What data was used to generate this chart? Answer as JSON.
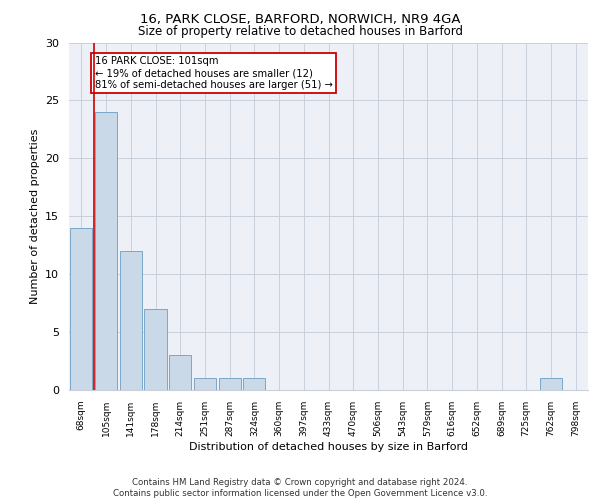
{
  "title1": "16, PARK CLOSE, BARFORD, NORWICH, NR9 4GA",
  "title2": "Size of property relative to detached houses in Barford",
  "xlabel": "Distribution of detached houses by size in Barford",
  "ylabel": "Number of detached properties",
  "bins": [
    "68sqm",
    "105sqm",
    "141sqm",
    "178sqm",
    "214sqm",
    "251sqm",
    "287sqm",
    "324sqm",
    "360sqm",
    "397sqm",
    "433sqm",
    "470sqm",
    "506sqm",
    "543sqm",
    "579sqm",
    "616sqm",
    "652sqm",
    "689sqm",
    "725sqm",
    "762sqm",
    "798sqm"
  ],
  "values": [
    14,
    24,
    12,
    7,
    3,
    1,
    1,
    1,
    0,
    0,
    0,
    0,
    0,
    0,
    0,
    0,
    0,
    0,
    0,
    1,
    0
  ],
  "bar_color": "#c9d9e8",
  "bar_edge_color": "#7ba7c9",
  "highlight_color": "#cc0000",
  "annotation_text": "16 PARK CLOSE: 101sqm\n← 19% of detached houses are smaller (12)\n81% of semi-detached houses are larger (51) →",
  "annotation_box_color": "#ffffff",
  "annotation_box_edge": "#cc0000",
  "ylim": [
    0,
    30
  ],
  "yticks": [
    0,
    5,
    10,
    15,
    20,
    25,
    30
  ],
  "grid_color": "#c8d0dc",
  "bg_color": "#edf1f7",
  "footer": "Contains HM Land Registry data © Crown copyright and database right 2024.\nContains public sector information licensed under the Open Government Licence v3.0."
}
